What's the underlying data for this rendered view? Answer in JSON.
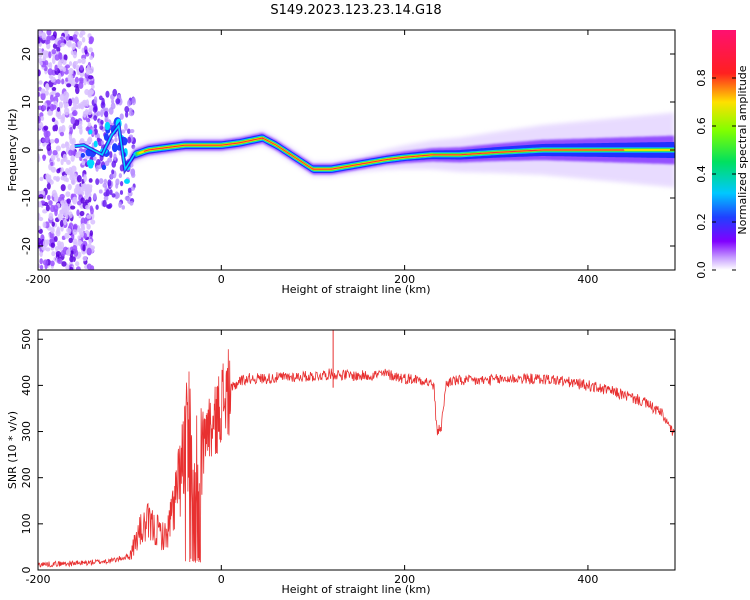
{
  "figure": {
    "title": "S149.2023.123.23.14.G18"
  },
  "chart_data": [
    {
      "type": "heatmap",
      "xlabel": "Height of straight line (km)",
      "ylabel": "Frequency (Hz)",
      "xlim": [
        -200,
        495
      ],
      "ylim": [
        -25,
        25
      ],
      "xticks": [
        -200,
        0,
        200,
        400
      ],
      "yticks": [
        -20,
        -10,
        0,
        10,
        20
      ],
      "grid": false,
      "ridge": {
        "x": [
          -200,
          -150,
          -130,
          -120,
          -112,
          -105,
          -95,
          -80,
          -60,
          -40,
          -20,
          0,
          20,
          45,
          60,
          80,
          100,
          120,
          150,
          180,
          200,
          230,
          260,
          300,
          350,
          400,
          450,
          495
        ],
        "y": [
          0,
          1,
          -1,
          3,
          5,
          -4,
          -1,
          0,
          0.5,
          1,
          1,
          1,
          1.5,
          2.5,
          1,
          -1.5,
          -4,
          -4,
          -3,
          -2,
          -1.5,
          -1,
          -1,
          -0.5,
          0,
          0,
          0,
          0
        ]
      },
      "colorbar": {
        "label": "Normalized spectral amplitude",
        "range": [
          0,
          1
        ],
        "ticks": [
          0.0,
          0.2,
          0.4,
          0.6,
          0.8
        ],
        "colormap": "rainbow (white-purple-blue-cyan-green-yellow-red-magenta)"
      }
    },
    {
      "type": "line",
      "xlabel": "Height of straight line (km)",
      "ylabel": "SNR (10 * v/v)",
      "xlim": [
        -200,
        495
      ],
      "ylim": [
        0,
        520
      ],
      "xticks": [
        -200,
        0,
        200,
        400
      ],
      "yticks": [
        0,
        100,
        200,
        300,
        400,
        500
      ],
      "grid": false,
      "color": "#e83030",
      "series": [
        {
          "x": [
            -200,
            -150,
            -120,
            -100,
            -90,
            -80,
            -60,
            -45,
            -35,
            -30,
            -25,
            -20,
            -15,
            -10,
            -5,
            0,
            10,
            20,
            30,
            50,
            70,
            100,
            120,
            150,
            180,
            200,
            220,
            232,
            235,
            240,
            245,
            250,
            280,
            320,
            360,
            400,
            430,
            460,
            480,
            495
          ],
          "y": [
            12,
            15,
            20,
            30,
            80,
            100,
            70,
            200,
            320,
            160,
            280,
            250,
            320,
            300,
            330,
            365,
            390,
            410,
            415,
            415,
            418,
            420,
            425,
            420,
            425,
            415,
            412,
            400,
            300,
            310,
            400,
            410,
            410,
            415,
            413,
            400,
            385,
            365,
            340,
            290
          ]
        }
      ],
      "annotations": {
        "spike": {
          "x": 122,
          "y": 520
        }
      }
    }
  ]
}
